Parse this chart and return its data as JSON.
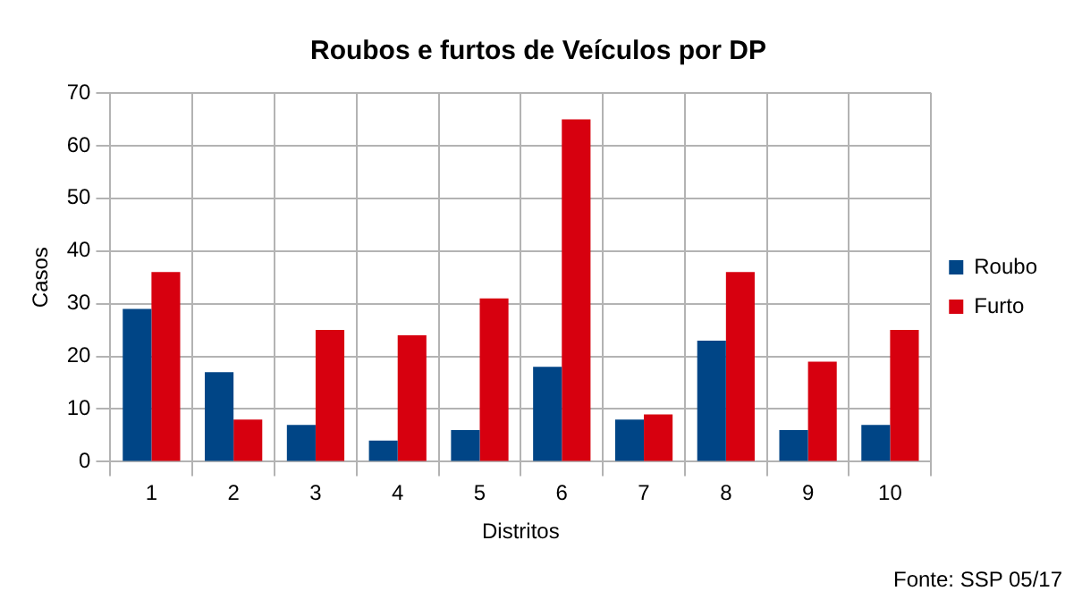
{
  "chart_data": {
    "type": "bar",
    "title": "Roubos e furtos de Veículos por DP",
    "xlabel": "Distritos",
    "ylabel": "Casos",
    "categories": [
      "1",
      "2",
      "3",
      "4",
      "5",
      "6",
      "7",
      "8",
      "9",
      "10"
    ],
    "series": [
      {
        "name": "Roubo",
        "color": "#004586",
        "values": [
          29,
          17,
          7,
          4,
          6,
          18,
          8,
          23,
          6,
          7
        ]
      },
      {
        "name": "Furto",
        "color": "#d7000f",
        "values": [
          36,
          8,
          25,
          24,
          31,
          65,
          9,
          36,
          19,
          25
        ]
      }
    ],
    "ylim": [
      0,
      70
    ],
    "yticks": [
      0,
      10,
      20,
      30,
      40,
      50,
      60,
      70
    ],
    "grid": true,
    "legend": "right",
    "annotations": [
      "Fonte: SSP 05/17"
    ]
  }
}
